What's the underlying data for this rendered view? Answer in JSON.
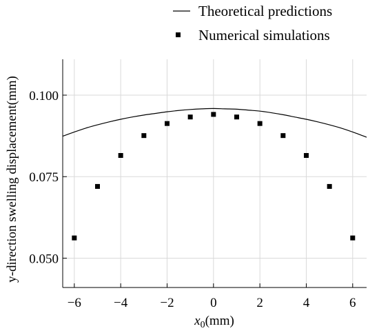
{
  "chart_data": {
    "type": "line",
    "title": "",
    "xlabel": {
      "main": "x",
      "sub": "0",
      "unit": "(mm)"
    },
    "ylabel": "y-direction swelling displacement(mm)",
    "xlim": [
      -6.5,
      6.6
    ],
    "ylim": [
      0.041,
      0.111
    ],
    "xticks": [
      -6,
      -4,
      -2,
      0,
      2,
      4,
      6
    ],
    "xtick_labels": [
      "−6",
      "−4",
      "−2",
      "0",
      "2",
      "4",
      "6"
    ],
    "yticks": [
      0.05,
      0.075,
      0.1
    ],
    "ytick_labels": [
      "0.050",
      "0.075",
      "0.100"
    ],
    "grid": true,
    "legend_position": "top-right",
    "series": [
      {
        "name": "Theoretical predictions",
        "kind": "line",
        "color": "#000000",
        "x": [
          -6.5,
          -6,
          -5.5,
          -5,
          -4.5,
          -4,
          -3.5,
          -3,
          -2.5,
          -2,
          -1.5,
          -1,
          -0.5,
          0,
          0.5,
          1,
          1.5,
          2,
          2.5,
          3,
          3.5,
          4,
          4.5,
          5,
          5.5,
          6,
          6.6
        ],
        "y": [
          0.0874,
          0.0887,
          0.0899,
          0.0909,
          0.0918,
          0.0926,
          0.0933,
          0.0939,
          0.0944,
          0.0949,
          0.0953,
          0.0956,
          0.0958,
          0.0959,
          0.0958,
          0.0957,
          0.0954,
          0.0951,
          0.0946,
          0.094,
          0.0933,
          0.0926,
          0.0918,
          0.0909,
          0.0899,
          0.0887,
          0.0871
        ]
      },
      {
        "name": "Numerical simulations",
        "kind": "scatter",
        "marker": "square",
        "color": "#000000",
        "x": [
          -6,
          -5,
          -4,
          -3,
          -2,
          -1,
          0,
          1,
          2,
          3,
          4,
          5,
          6
        ],
        "y": [
          0.0562,
          0.072,
          0.0815,
          0.0876,
          0.0913,
          0.0933,
          0.0941,
          0.0933,
          0.0913,
          0.0876,
          0.0815,
          0.072,
          0.0562
        ]
      }
    ]
  }
}
